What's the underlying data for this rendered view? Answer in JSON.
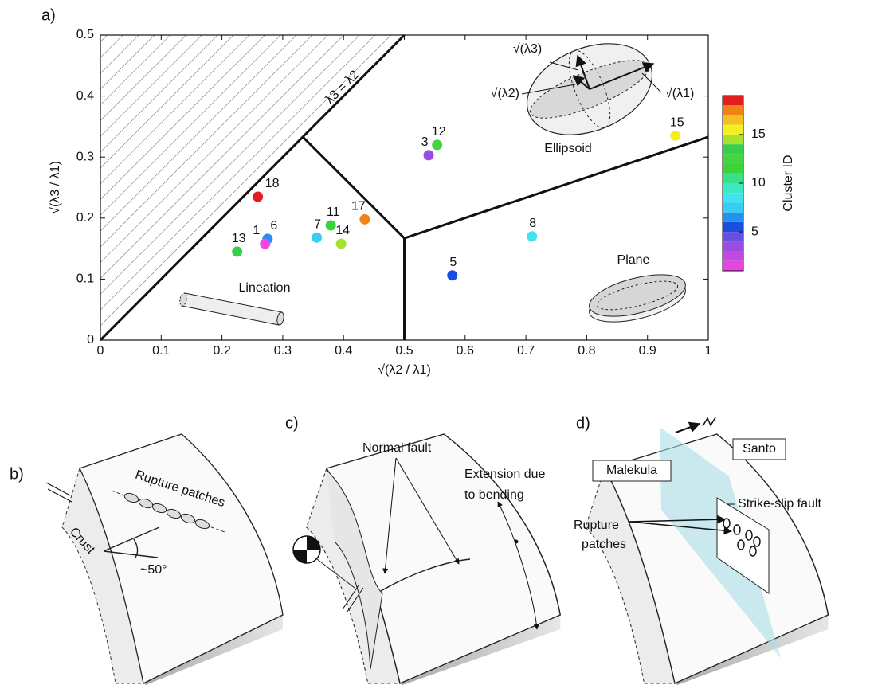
{
  "chart_data": {
    "type": "scatter",
    "panel_label": "a)",
    "xlabel": "√(λ2 / λ1)",
    "ylabel": "√(λ3 / λ1)",
    "xlim": [
      0,
      1
    ],
    "ylim": [
      0,
      0.5
    ],
    "xticks": [
      0,
      0.1,
      0.2,
      0.3,
      0.4,
      0.5,
      0.6,
      0.7,
      0.8,
      0.9,
      1
    ],
    "yticks": [
      0,
      0.1,
      0.2,
      0.3,
      0.4,
      0.5
    ],
    "point_labels": [
      "18",
      "17",
      "11",
      "14",
      "7",
      "6",
      "1",
      "13",
      "3",
      "12",
      "5",
      "8",
      "15"
    ],
    "x": [
      0.259,
      0.435,
      0.379,
      0.396,
      0.356,
      0.275,
      0.271,
      0.225,
      0.54,
      0.554,
      0.579,
      0.71,
      0.946
    ],
    "values": [
      0.235,
      0.198,
      0.188,
      0.158,
      0.168,
      0.166,
      0.158,
      0.145,
      0.303,
      0.32,
      0.106,
      0.17,
      0.335
    ],
    "colors": [
      "#e41e1e",
      "#f08218",
      "#3ed23a",
      "#a6e22e",
      "#38cdf2",
      "#2490f0",
      "#ee48e0",
      "#34d04a",
      "#9a4de2",
      "#44d440",
      "#1a4ee0",
      "#40e2f0",
      "#f4f020"
    ],
    "lines": [
      {
        "x": [
          0,
          0.5
        ],
        "y": [
          0,
          0.5
        ]
      },
      {
        "x": [
          0.333,
          0.5,
          1
        ],
        "y": [
          0.333,
          0.167,
          0.333
        ]
      },
      {
        "x": [
          0.5,
          0.5
        ],
        "y": [
          0.167,
          0
        ]
      }
    ],
    "boundary_label": "λ3 = λ2",
    "region_labels": [
      "Lineation",
      "Ellipsoid",
      "Plane"
    ],
    "ellipsoid_axes": [
      "√(λ3)",
      "√(λ2)",
      "√(λ1)"
    ],
    "colorbar": {
      "label": "Cluster ID",
      "lim": [
        1,
        19
      ],
      "ticks": [
        5,
        10,
        15
      ],
      "colors": [
        "#e844e0",
        "#c24ae2",
        "#9a4de2",
        "#6a4ee4",
        "#1a4ee0",
        "#2490f0",
        "#38cdf2",
        "#40e2f0",
        "#3ee8c0",
        "#38e08a",
        "#3ed23a",
        "#44d440",
        "#34d04a",
        "#a6e22e",
        "#f4f020",
        "#f4c020",
        "#f08218",
        "#e41e1e"
      ]
    }
  },
  "panels": {
    "b": {
      "label": "b)",
      "texts": [
        "Rupture patches",
        "Crust",
        "~50°"
      ]
    },
    "c": {
      "label": "c)",
      "texts": [
        "Normal fault"
      ],
      "extension": [
        "Extension due",
        "to bending"
      ]
    },
    "d": {
      "label": "d)",
      "texts": [
        "Malekula",
        "Santo",
        "Strike-slip fault"
      ],
      "patches": [
        "Rupture",
        "patches"
      ]
    }
  }
}
